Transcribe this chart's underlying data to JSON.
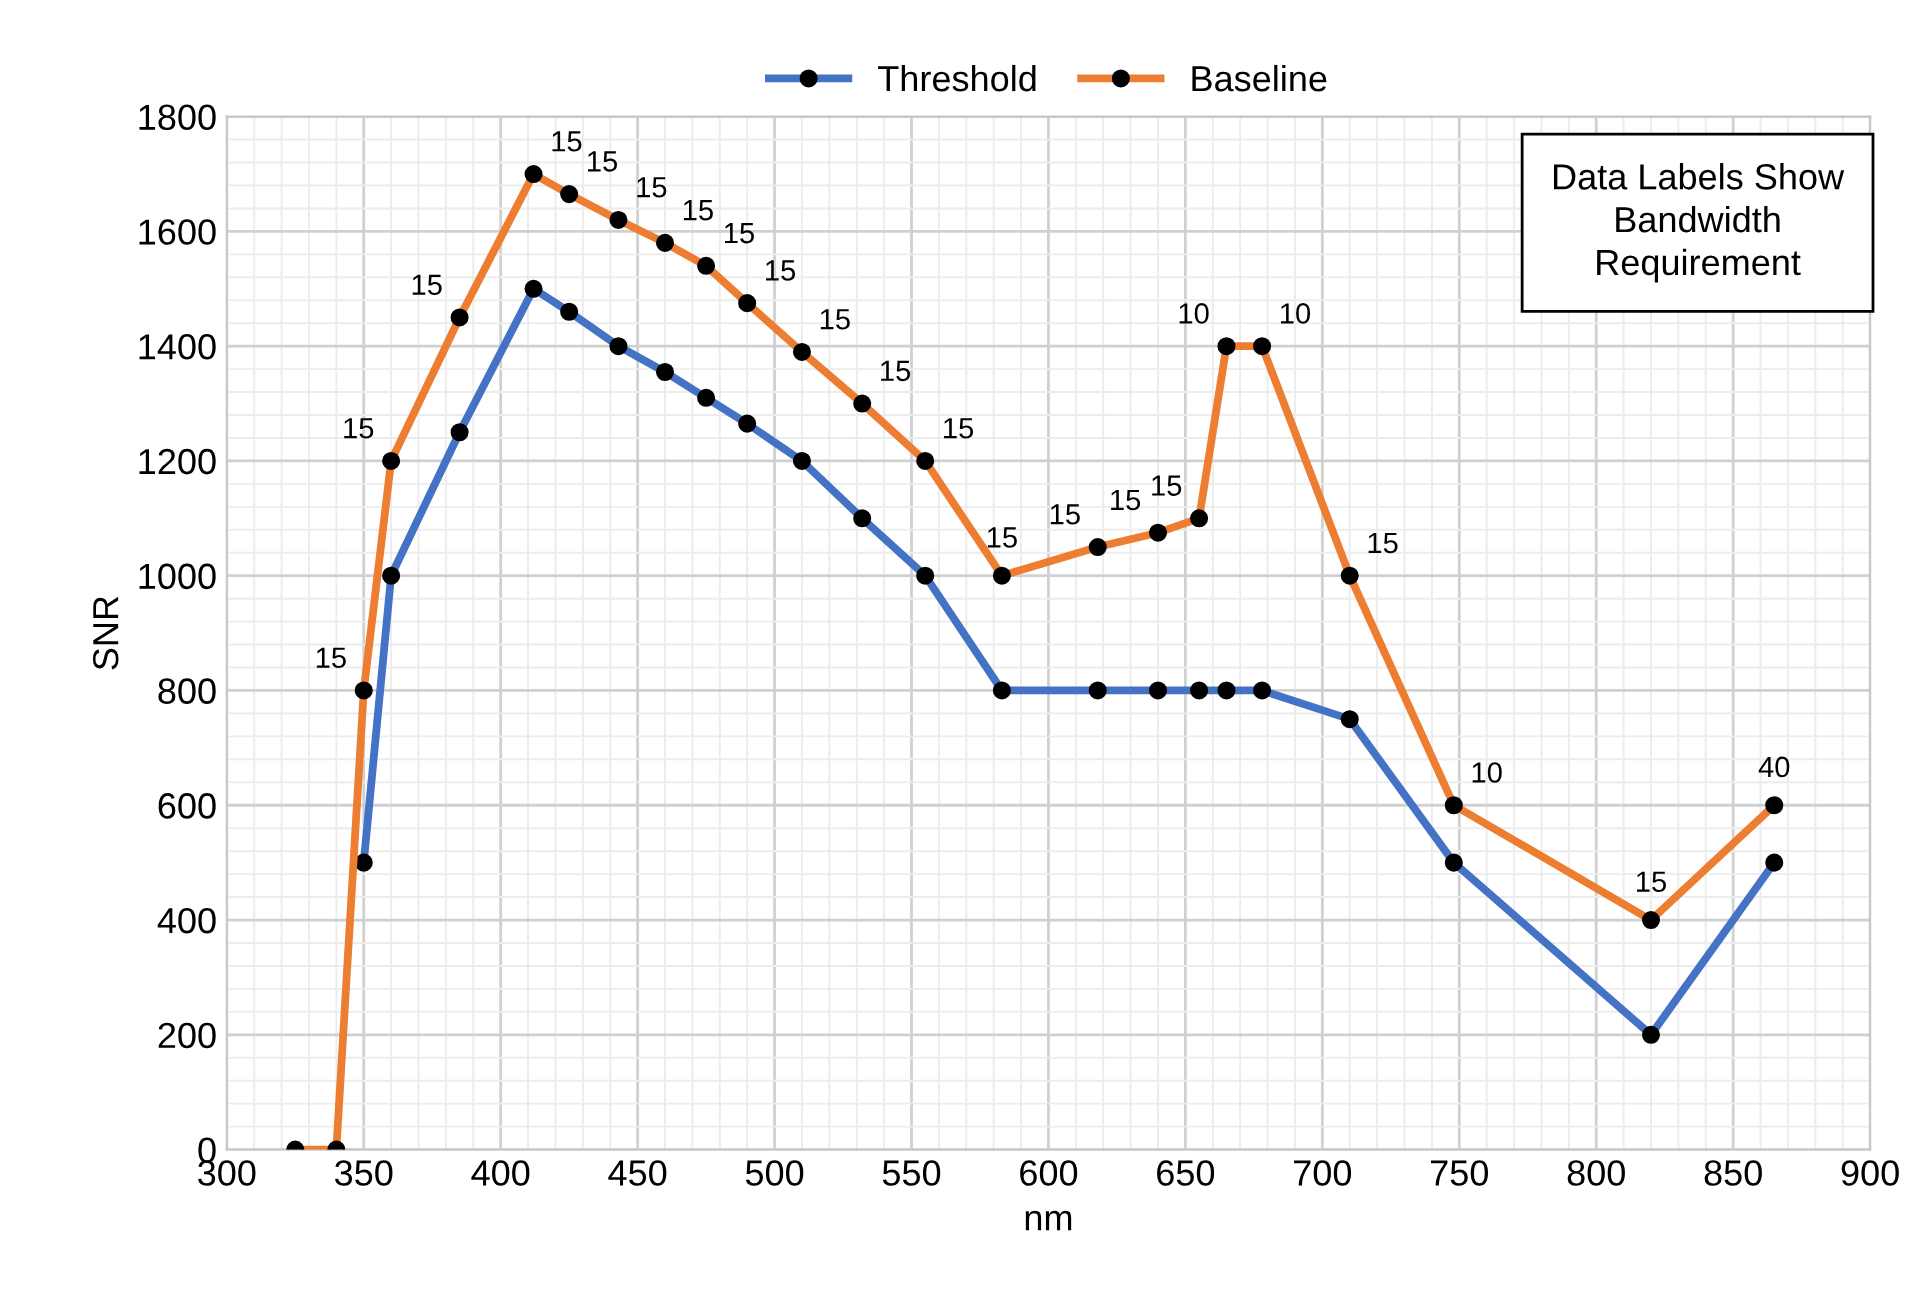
{
  "chart_data": {
    "type": "line",
    "xlabel": "nm",
    "ylabel": "SNR",
    "xlim": [
      300,
      900
    ],
    "xticks": [
      300,
      350,
      400,
      450,
      500,
      550,
      600,
      650,
      700,
      750,
      800,
      850,
      900
    ],
    "ylim": [
      0,
      1800
    ],
    "yticks": [
      0,
      200,
      400,
      600,
      800,
      1000,
      1200,
      1400,
      1600,
      1800
    ],
    "grid": true,
    "legend": "top",
    "marker": "circle",
    "line_style": "solid",
    "annotations": [
      "Data Labels Show\nBandwidth\nRequirement",
      {
        "text": "15",
        "x": 350,
        "y": 800
      },
      {
        "text": "15",
        "x": 360,
        "y": 1200
      },
      {
        "text": "15",
        "x": 385,
        "y": 1450
      },
      {
        "text": "15",
        "x": 412,
        "y": 1700
      },
      {
        "text": "15",
        "x": 425,
        "y": 1665
      },
      {
        "text": "15",
        "x": 443,
        "y": 1620
      },
      {
        "text": "15",
        "x": 460,
        "y": 1580
      },
      {
        "text": "15",
        "x": 475,
        "y": 1540
      },
      {
        "text": "15",
        "x": 490,
        "y": 1475
      },
      {
        "text": "15",
        "x": 510,
        "y": 1390
      },
      {
        "text": "15",
        "x": 532,
        "y": 1300
      },
      {
        "text": "15",
        "x": 555,
        "y": 1200
      },
      {
        "text": "15",
        "x": 583,
        "y": 1000
      },
      {
        "text": "15",
        "x": 618,
        "y": 1050
      },
      {
        "text": "15",
        "x": 640,
        "y": 1075
      },
      {
        "text": "15",
        "x": 655,
        "y": 1100
      },
      {
        "text": "10",
        "x": 665,
        "y": 1400
      },
      {
        "text": "10",
        "x": 678,
        "y": 1400
      },
      {
        "text": "15",
        "x": 710,
        "y": 1000
      },
      {
        "text": "10",
        "x": 748,
        "y": 600
      },
      {
        "text": "15",
        "x": 820,
        "y": 400
      },
      {
        "text": "40",
        "x": 865,
        "y": 600
      }
    ],
    "series": [
      {
        "name": "Threshold",
        "color": "#4472c4",
        "x": [
          350,
          360,
          385,
          412,
          425,
          443,
          460,
          475,
          490,
          510,
          532,
          555,
          583,
          618,
          640,
          655,
          665,
          678,
          710,
          748,
          820,
          865
        ],
        "values": [
          500,
          1000,
          1250,
          1500,
          1460,
          1400,
          1355,
          1310,
          1265,
          1200,
          1100,
          1000,
          800,
          800,
          800,
          800,
          800,
          800,
          750,
          500,
          200,
          500
        ]
      },
      {
        "name": "Baseline",
        "color": "#ed7d31",
        "x": [
          325,
          340,
          350,
          360,
          385,
          412,
          425,
          443,
          460,
          475,
          490,
          510,
          532,
          555,
          583,
          618,
          640,
          655,
          665,
          678,
          710,
          748,
          820,
          865
        ],
        "values": [
          0,
          0,
          800,
          1200,
          1450,
          1700,
          1665,
          1620,
          1580,
          1540,
          1475,
          1390,
          1300,
          1200,
          1000,
          1050,
          1075,
          1100,
          1400,
          1400,
          1000,
          600,
          400,
          600
        ]
      }
    ]
  }
}
